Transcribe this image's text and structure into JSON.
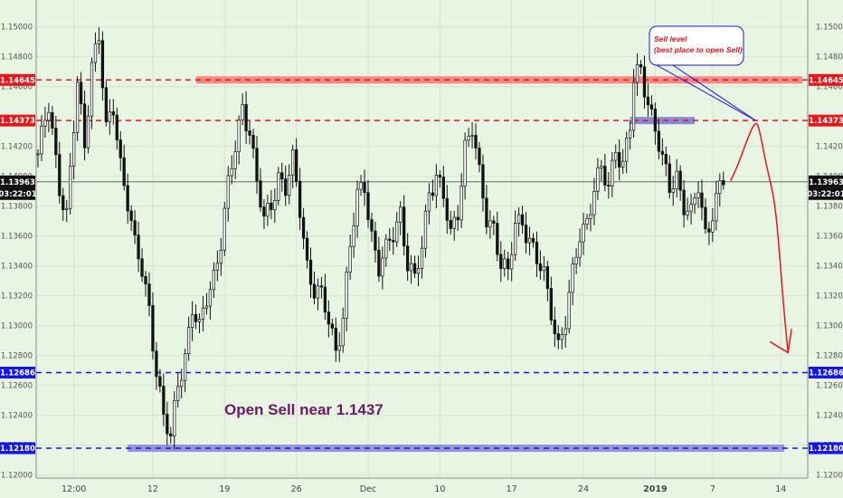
{
  "chart_data": {
    "type": "candlestick",
    "x_tick_labels": [
      "12:00",
      "12",
      "19",
      "26",
      "Dec",
      "10",
      "17",
      "24",
      "2019",
      "7",
      "14"
    ],
    "x_tick_index": [
      10,
      32,
      52,
      72,
      92,
      112,
      132,
      152,
      172,
      188,
      207
    ],
    "y_ticks": [
      1.12,
      1.122,
      1.124,
      1.126,
      1.128,
      1.13,
      1.132,
      1.134,
      1.136,
      1.138,
      1.14,
      1.142,
      1.146,
      1.148,
      1.15
    ],
    "ylim": [
      1.1198,
      1.1518
    ],
    "n_slots": 215,
    "current_price": "1.13963",
    "countdown": "03:22:01",
    "levels": [
      {
        "value": 1.14645,
        "label": "1.14645",
        "color": "#e8151b",
        "style": "dashed"
      },
      {
        "value": 1.14373,
        "label": "1.14373",
        "color": "#e8151b",
        "style": "dashed"
      },
      {
        "value": 1.12686,
        "label": "1.12686",
        "color": "#1515e8",
        "style": "dashed"
      },
      {
        "value": 1.1218,
        "label": "1.12180",
        "color": "#1515e8",
        "style": "dashed"
      }
    ],
    "zones": [
      {
        "from_index": 44,
        "to_index": 213,
        "value": 1.14645,
        "color": "#ff6b6b"
      },
      {
        "from_index": 165,
        "to_index": 183,
        "value": 1.14373,
        "color": "#6f6fd6"
      },
      {
        "from_index": 25,
        "to_index": 208,
        "value": 1.1218,
        "color": "#7e7ed8"
      }
    ],
    "price_path": [
      [
        0,
        1.1415
      ],
      [
        3,
        1.1445
      ],
      [
        6,
        1.1395
      ],
      [
        8,
        1.1375
      ],
      [
        11,
        1.146
      ],
      [
        13,
        1.142
      ],
      [
        15,
        1.1478
      ],
      [
        17,
        1.1495
      ],
      [
        19,
        1.1428
      ],
      [
        21,
        1.1445
      ],
      [
        23,
        1.141
      ],
      [
        25,
        1.1385
      ],
      [
        27,
        1.1352
      ],
      [
        29,
        1.1335
      ],
      [
        31,
        1.1312
      ],
      [
        33,
        1.1272
      ],
      [
        35,
        1.1238
      ],
      [
        37,
        1.1222
      ],
      [
        39,
        1.1262
      ],
      [
        41,
        1.1282
      ],
      [
        43,
        1.1312
      ],
      [
        45,
        1.1295
      ],
      [
        47,
        1.1318
      ],
      [
        49,
        1.1335
      ],
      [
        51,
        1.1358
      ],
      [
        53,
        1.1392
      ],
      [
        55,
        1.1418
      ],
      [
        57,
        1.1448
      ],
      [
        59,
        1.1432
      ],
      [
        61,
        1.1395
      ],
      [
        63,
        1.1368
      ],
      [
        65,
        1.1382
      ],
      [
        67,
        1.1402
      ],
      [
        69,
        1.1392
      ],
      [
        71,
        1.1408
      ],
      [
        73,
        1.1378
      ],
      [
        75,
        1.1342
      ],
      [
        77,
        1.1325
      ],
      [
        79,
        1.1318
      ],
      [
        81,
        1.1302
      ],
      [
        83,
        1.1285
      ],
      [
        85,
        1.1308
      ],
      [
        87,
        1.1352
      ],
      [
        89,
        1.1385
      ],
      [
        91,
        1.1395
      ],
      [
        93,
        1.1362
      ],
      [
        95,
        1.1338
      ],
      [
        97,
        1.1348
      ],
      [
        99,
        1.1362
      ],
      [
        101,
        1.1378
      ],
      [
        103,
        1.1342
      ],
      [
        105,
        1.1328
      ],
      [
        107,
        1.1352
      ],
      [
        109,
        1.1392
      ],
      [
        111,
        1.1402
      ],
      [
        113,
        1.1385
      ],
      [
        115,
        1.1358
      ],
      [
        117,
        1.1378
      ],
      [
        119,
        1.1422
      ],
      [
        121,
        1.1432
      ],
      [
        123,
        1.1398
      ],
      [
        125,
        1.1372
      ],
      [
        127,
        1.1368
      ],
      [
        129,
        1.1342
      ],
      [
        131,
        1.1332
      ],
      [
        133,
        1.1368
      ],
      [
        135,
        1.1372
      ],
      [
        137,
        1.1358
      ],
      [
        139,
        1.1342
      ],
      [
        141,
        1.1332
      ],
      [
        143,
        1.1312
      ],
      [
        145,
        1.1288
      ],
      [
        147,
        1.1302
      ],
      [
        149,
        1.1332
      ],
      [
        151,
        1.1362
      ],
      [
        153,
        1.1372
      ],
      [
        155,
        1.1392
      ],
      [
        157,
        1.1402
      ],
      [
        159,
        1.1392
      ],
      [
        161,
        1.1422
      ],
      [
        163,
        1.1408
      ],
      [
        165,
        1.1432
      ],
      [
        166,
        1.1462
      ],
      [
        168,
        1.1472
      ],
      [
        170,
        1.1452
      ],
      [
        172,
        1.1432
      ],
      [
        174,
        1.1408
      ],
      [
        176,
        1.1392
      ],
      [
        178,
        1.1402
      ],
      [
        180,
        1.1382
      ],
      [
        182,
        1.1372
      ],
      [
        184,
        1.1392
      ],
      [
        186,
        1.1362
      ],
      [
        188,
        1.1378
      ],
      [
        190,
        1.1392
      ],
      [
        191,
        1.1396
      ]
    ],
    "forecast_path": [
      [
        193,
        1.1397
      ],
      [
        195,
        1.1407
      ],
      [
        198,
        1.1427
      ],
      [
        200,
        1.1437
      ],
      [
        201,
        1.1432
      ],
      [
        203,
        1.1407
      ],
      [
        205,
        1.1387
      ],
      [
        206,
        1.1367
      ],
      [
        207,
        1.1337
      ],
      [
        208,
        1.1307
      ],
      [
        209,
        1.1282
      ]
    ],
    "forecast_color": "#e8151b",
    "annotations": {
      "callout_line1": "Sell level",
      "callout_line2": "(best place to open Sell)",
      "headline": "Open Sell near 1.1437",
      "headline_color": "#6b1a6b"
    },
    "grid": true
  }
}
